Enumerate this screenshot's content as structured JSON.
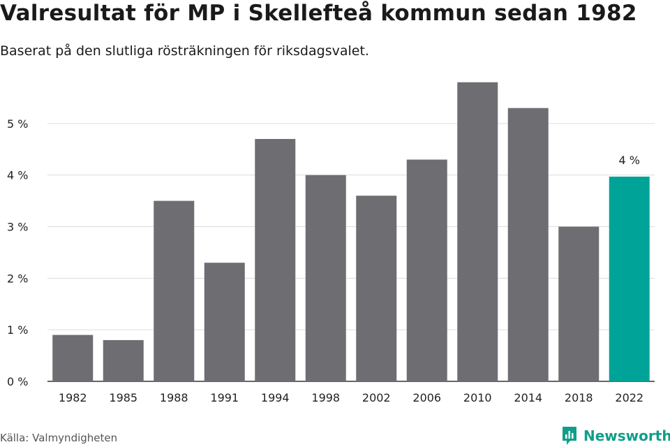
{
  "header": {
    "title": "Valresultat för MP i Skellefteå kommun sedan 1982",
    "subtitle": "Baserat på den slutliga rösträkningen för riksdagsvalet."
  },
  "footer": {
    "source": "Källa: Valmyndigheten",
    "brand": "Newsworthy"
  },
  "colors": {
    "bar": "#6e6d72",
    "highlight": "#00a398",
    "grid": "#dcdcdc",
    "axis": "#333333",
    "brand": "#109e8a"
  },
  "chart_data": {
    "type": "bar",
    "categories": [
      "1982",
      "1985",
      "1988",
      "1991",
      "1994",
      "1998",
      "2002",
      "2006",
      "2010",
      "2014",
      "2018",
      "2022"
    ],
    "values": [
      0.9,
      0.8,
      3.5,
      2.3,
      4.7,
      4.0,
      3.6,
      4.3,
      5.8,
      5.3,
      3.0,
      3.97
    ],
    "highlight_index": 11,
    "data_labels": [
      {
        "index": 11,
        "text": "4 %"
      }
    ],
    "yticks": [
      0,
      1,
      2,
      3,
      4,
      5
    ],
    "ytick_labels": [
      "0 %",
      "1 %",
      "2 %",
      "3 %",
      "4 %",
      "5 %"
    ],
    "ylim": [
      0,
      6
    ],
    "grid": true,
    "legend": "none"
  }
}
